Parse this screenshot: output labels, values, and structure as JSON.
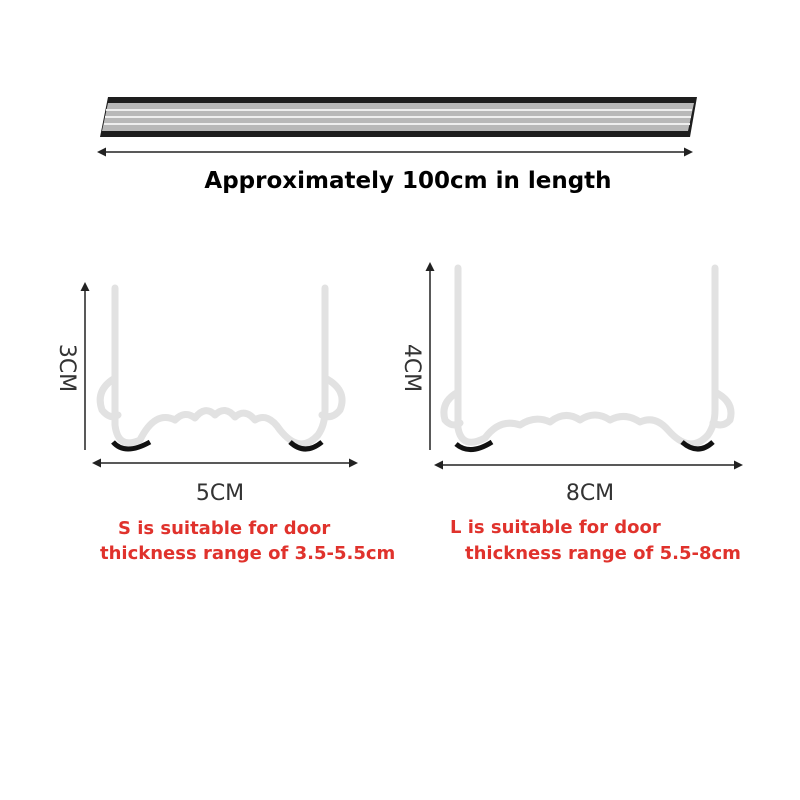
{
  "header": {
    "title": "Approximately 100cm in length"
  },
  "small": {
    "height": "3CM",
    "width": "5CM",
    "note_line1": "S is suitable for door",
    "note_line2": "thickness range of 3.5-5.5cm"
  },
  "large": {
    "height": "4CM",
    "width": "8CM",
    "note_line1": "L is suitable for door",
    "note_line2": "thickness range of 5.5-8cm"
  }
}
